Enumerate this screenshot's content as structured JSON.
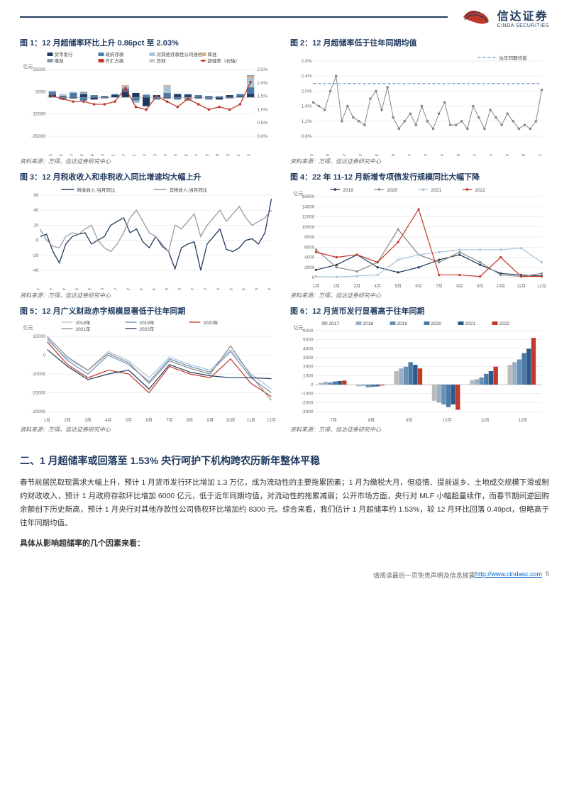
{
  "logo": {
    "cn": "信达证券",
    "en": "CINDA SECURITIES"
  },
  "source_note": "资料来源：万得，信达证券研究中心",
  "footer": {
    "text": "请阅读最后一页免责声明及信息披露 ",
    "link_text": "http://www.cindasc.com",
    "page": "5"
  },
  "section2": {
    "heading": "二、1 月超储率或回落至 1.53%  央行呵护下机构跨农历新年整体平稳",
    "p1": "春节前居民取现需求大幅上升，预计 1 月货币发行环比增加 1.3 万亿，成为流动性的主要拖累因素；1 月为缴税大月，但疫情、提前返乡、土地成交规模下滑或制约财政收入，预计 1 月政府存款环比增加 6000 亿元，低于近年同期均值，对流动性的拖累减弱；公开市场方面，央行对 MLF 小幅超量续作，而春节期间逆回购余额创下历史新高，预计 1 月央行对其他存款性公司债权环比增加约 8300 元。综合来看，我们估计 1 月超储率约 1.53%，较 12 月环比回落 0.49pct，但略高于往年同期均值。",
    "p2": "具体从影响超储率的几个因素来看："
  },
  "chart1": {
    "title": "图 1：12 月超储率环比上升 0.86pct 至 2.03%",
    "ylabel": "亿元",
    "legend": [
      "货币发行",
      "政府存款",
      "对其他存款性公司债权",
      "降准",
      "缴准",
      "外汇占款",
      "其他",
      "超储率（右轴）"
    ],
    "legend_colors": [
      "#1f3a5f",
      "#4a7ba6",
      "#a8c4d8",
      "#d8b088",
      "#8899aa",
      "#c0392b",
      "#ccc",
      "#c0392b"
    ],
    "yleft_ticks": [
      "-35000",
      "-15000",
      "5000",
      "25000"
    ],
    "yright_ticks": [
      "0.0%",
      "0.5%",
      "1.0%",
      "1.5%",
      "2.0%",
      "2.5%"
    ],
    "xticks": [
      "2021-05",
      "2021-06",
      "2021-07",
      "2021-08",
      "2021-09",
      "2021-10",
      "2021-11",
      "2021-12",
      "2022-01",
      "2022-02",
      "2022-03",
      "2022-04",
      "2022-05",
      "2022-06",
      "2022-07",
      "2022-08",
      "2022-09",
      "2022-10",
      "2022-11",
      "2022-12"
    ],
    "bars_pos": [
      [
        2,
        3,
        1,
        0,
        0
      ],
      [
        1,
        -2,
        2,
        0,
        0
      ],
      [
        -1,
        4,
        1,
        0,
        0
      ],
      [
        3,
        -3,
        1,
        0,
        1
      ],
      [
        -2,
        2,
        0,
        0,
        0
      ],
      [
        1,
        -1,
        0,
        0,
        0
      ],
      [
        2,
        1,
        0,
        0,
        0
      ],
      [
        5,
        3,
        2,
        1,
        0
      ],
      [
        4,
        -3,
        -2,
        0,
        0
      ],
      [
        -8,
        2,
        1,
        0,
        0
      ],
      [
        2,
        -2,
        0,
        0,
        0
      ],
      [
        -1,
        4,
        6,
        1,
        0
      ],
      [
        3,
        -2,
        0,
        0,
        0
      ],
      [
        2,
        1,
        0,
        0,
        -3
      ],
      [
        -1,
        2,
        0,
        0,
        0
      ],
      [
        1,
        -2,
        0,
        0,
        0
      ],
      [
        -2,
        1,
        0,
        0,
        0
      ],
      [
        2,
        -1,
        0,
        0,
        0
      ],
      [
        1,
        2,
        0,
        0,
        0
      ],
      [
        3,
        6,
        8,
        2,
        1
      ]
    ],
    "rate": [
      1.5,
      1.4,
      1.3,
      1.3,
      1.2,
      1.2,
      1.3,
      1.8,
      1.1,
      1.0,
      1.5,
      1.3,
      1.1,
      1.4,
      1.2,
      1.0,
      1.1,
      1.0,
      1.2,
      2.03
    ]
  },
  "chart2": {
    "title": "图 2：12 月超储率低于往年同期均值",
    "legend": [
      "往年同期均值"
    ],
    "avg": 2.2,
    "yticks": [
      "0.8%",
      "1.2%",
      "1.6%",
      "2.0%",
      "2.4%",
      "2.8%"
    ],
    "xticks": [
      "2019-06",
      "2019-09",
      "2019-12",
      "2020-03",
      "2020-06",
      "2020-09",
      "2020-12",
      "2021-03",
      "2021-06",
      "2021-09",
      "2021-12",
      "2022-03",
      "2022-06",
      "2022-09",
      "2022-12"
    ],
    "values": [
      1.7,
      1.6,
      1.5,
      2.0,
      2.4,
      1.2,
      1.6,
      1.3,
      1.2,
      1.1,
      1.8,
      2.0,
      1.5,
      2.1,
      1.3,
      1.0,
      1.2,
      1.4,
      1.1,
      1.6,
      1.2,
      1.0,
      1.4,
      1.7,
      1.1,
      1.1,
      1.2,
      1.0,
      1.6,
      1.3,
      1.0,
      1.5,
      1.3,
      1.1,
      1.4,
      1.2,
      1.0,
      1.1,
      1.0,
      1.2,
      2.03
    ]
  },
  "chart3": {
    "title": "图 3：12 月税收收入和非税收入同比增速均大幅上升",
    "legend": [
      "税收收入:当月同比",
      "非税收入:当月同比"
    ],
    "colors": [
      "#1f3a5f",
      "#9999aa"
    ],
    "yticks": [
      "-40",
      "-20",
      "0",
      "20",
      "40",
      "60"
    ],
    "xticks": [
      "2019-12",
      "2020-02",
      "2020-04",
      "2020-06",
      "2020-08",
      "2020-10",
      "2020-12",
      "2021-02",
      "2021-04",
      "2021-06",
      "2021-08",
      "2021-10",
      "2021-12",
      "2022-02",
      "2022-04",
      "2022-06",
      "2022-08",
      "2022-10",
      "2022-12"
    ],
    "tax": [
      5,
      8,
      -15,
      -30,
      -5,
      5,
      8,
      10,
      -5,
      0,
      5,
      20,
      25,
      30,
      10,
      15,
      -2,
      -10,
      5,
      -8,
      -15,
      -38,
      -10,
      -5,
      -2,
      -40,
      -5,
      5,
      15,
      -12,
      -15,
      -10,
      0,
      2,
      -5,
      10,
      55
    ],
    "nontax": [
      15,
      0,
      -8,
      -10,
      5,
      10,
      8,
      15,
      20,
      0,
      -10,
      -15,
      -5,
      10,
      30,
      40,
      25,
      10,
      5,
      -5,
      -15,
      20,
      15,
      25,
      35,
      5,
      20,
      30,
      40,
      25,
      35,
      45,
      30,
      20,
      25,
      30,
      40
    ]
  },
  "chart4": {
    "title": "图 4：22 年 11-12 月新增专项债发行规模同比大幅下降",
    "ylabel": "亿元",
    "legend": [
      "2019",
      "2020",
      "2021",
      "2022"
    ],
    "colors": [
      "#1f3a5f",
      "#888",
      "#a8c4d8",
      "#c0392b"
    ],
    "yticks": [
      "0",
      "2000",
      "4000",
      "6000",
      "8000",
      "10000",
      "12000",
      "14000",
      "16000"
    ],
    "xticks": [
      "1月",
      "2月",
      "3月",
      "4月",
      "5月",
      "6月",
      "7月",
      "8月",
      "9月",
      "10月",
      "11月",
      "12月"
    ],
    "y2019": [
      1500,
      2500,
      4500,
      2000,
      1000,
      2000,
      3500,
      4500,
      2500,
      800,
      500,
      300
    ],
    "y2020": [
      5500,
      2000,
      1200,
      3000,
      9500,
      4500,
      3000,
      5000,
      3000,
      500,
      200,
      800
    ],
    "y2021": [
      200,
      100,
      300,
      500,
      3500,
      4500,
      5000,
      5500,
      5500,
      5500,
      5800,
      3000
    ],
    "y2022": [
      5000,
      4000,
      4500,
      3000,
      7000,
      13500,
      500,
      500,
      200,
      4000,
      200,
      200
    ]
  },
  "chart5": {
    "title": "图 5：12 月广义财政赤字规模显著低于往年同期",
    "ylabel": "亿元",
    "legend": [
      "2018年",
      "2019年",
      "2020年",
      "2021年",
      "2022年"
    ],
    "colors": [
      "#a8c4d8",
      "#6a90b5",
      "#c0392b",
      "#888",
      "#1f3a5f"
    ],
    "yticks": [
      "-30000",
      "-20000",
      "-10000",
      "0",
      "10000"
    ],
    "xticks": [
      "1月",
      "2月",
      "3月",
      "4月",
      "5月",
      "6月",
      "7月",
      "8月",
      "9月",
      "10月",
      "11月",
      "12月"
    ],
    "y2018": [
      8000,
      -2000,
      -8000,
      2000,
      -3000,
      -12000,
      -1000,
      -5000,
      -8000,
      3000,
      -10000,
      -18000
    ],
    "y2019": [
      9000,
      -3000,
      -10000,
      0,
      -5000,
      -14000,
      -2000,
      -6000,
      -9000,
      2000,
      -12000,
      -20000
    ],
    "y2020": [
      7000,
      -5000,
      -12000,
      -8000,
      -10000,
      -20000,
      -6000,
      -10000,
      -12000,
      -2000,
      -15000,
      -22000
    ],
    "y2021": [
      10000,
      -1000,
      -8000,
      1000,
      -4000,
      -15000,
      -3000,
      -7000,
      -10000,
      5000,
      -11000,
      -24000
    ],
    "y2022": [
      3000,
      -6000,
      -13000,
      -10000,
      -8000,
      -18000,
      -5000,
      -9000,
      -11000,
      -12000,
      -12000,
      -12500
    ]
  },
  "chart6": {
    "title": "图 6：12 月货币发行显著高于往年同期",
    "ylabel": "亿元",
    "legend": [
      "2017",
      "2018",
      "2019",
      "2020",
      "2021",
      "2022"
    ],
    "colors": [
      "#bbb",
      "#9aafc4",
      "#6a90b5",
      "#4a7ba6",
      "#2d5a8a",
      "#c0392b"
    ],
    "yticks": [
      "-3000",
      "-2000",
      "-1000",
      "0",
      "1000",
      "2000",
      "3000",
      "4000",
      "5000",
      "6000"
    ],
    "xticks": [
      "7月",
      "8月",
      "9月",
      "10月",
      "11月",
      "12月"
    ],
    "data": {
      "2017": [
        200,
        -200,
        1500,
        -1800,
        500,
        2200
      ],
      "2018": [
        300,
        -150,
        1800,
        -2000,
        600,
        2500
      ],
      "2019": [
        250,
        -300,
        2000,
        -2200,
        800,
        2800
      ],
      "2020": [
        350,
        -250,
        2500,
        -2500,
        1200,
        3500
      ],
      "2021": [
        400,
        -200,
        2200,
        -2200,
        1500,
        4000
      ],
      "2022": [
        450,
        -100,
        1800,
        -2800,
        2000,
        5200
      ]
    }
  }
}
